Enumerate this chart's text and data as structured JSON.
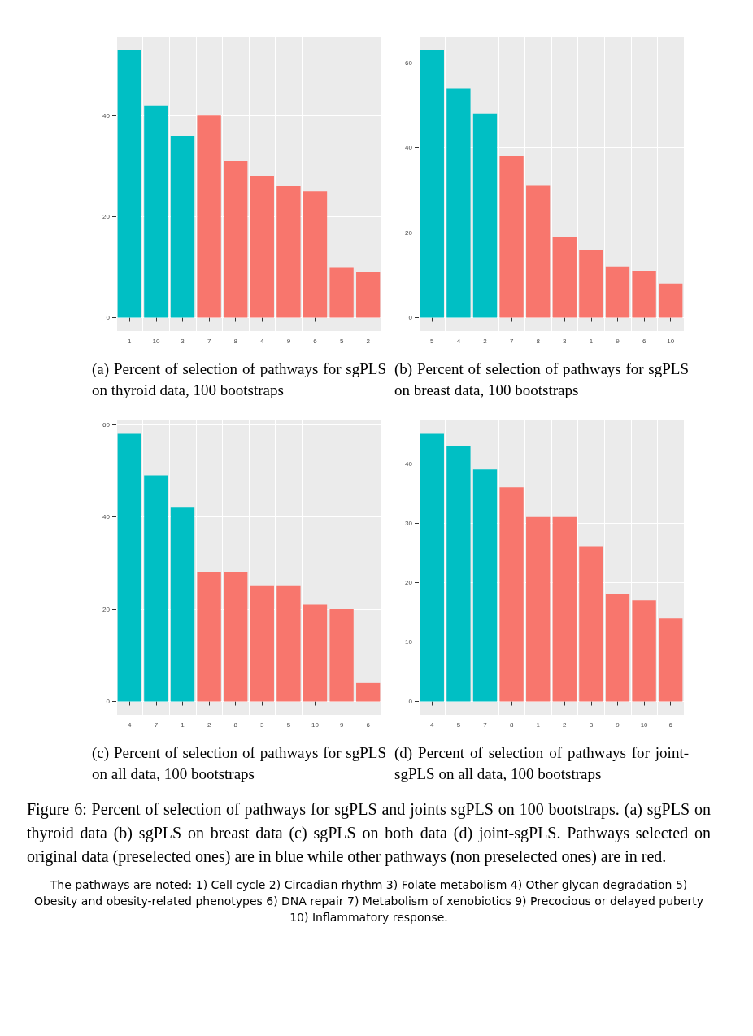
{
  "chart_data": [
    {
      "type": "bar",
      "categories": [
        "1",
        "10",
        "3",
        "7",
        "8",
        "4",
        "9",
        "6",
        "5",
        "2"
      ],
      "values": [
        53,
        42,
        36,
        40,
        31,
        28,
        26,
        25,
        10,
        9
      ],
      "colors": [
        "#00bfc4",
        "#00bfc4",
        "#00bfc4",
        "#f8766d",
        "#f8766d",
        "#f8766d",
        "#f8766d",
        "#f8766d",
        "#f8766d",
        "#f8766d"
      ],
      "ylim": [
        -2.65,
        55.65
      ],
      "yticks": [
        0,
        20,
        40
      ],
      "grid": true,
      "annotations": [
        "(a) Percent of selection of pathways for sgPLS on thyroid data, 100 bootstraps"
      ]
    },
    {
      "type": "bar",
      "categories": [
        "5",
        "4",
        "2",
        "7",
        "8",
        "3",
        "1",
        "9",
        "6",
        "10"
      ],
      "values": [
        63,
        54,
        48,
        38,
        31,
        19,
        16,
        12,
        11,
        8
      ],
      "colors": [
        "#00bfc4",
        "#00bfc4",
        "#00bfc4",
        "#f8766d",
        "#f8766d",
        "#f8766d",
        "#f8766d",
        "#f8766d",
        "#f8766d",
        "#f8766d"
      ],
      "ylim": [
        -3.15,
        66.15
      ],
      "yticks": [
        0,
        20,
        40,
        60
      ],
      "grid": true,
      "annotations": [
        "(b) Percent of selection of pathways for sgPLS on breast data, 100 bootstraps"
      ]
    },
    {
      "type": "bar",
      "categories": [
        "4",
        "7",
        "1",
        "2",
        "8",
        "3",
        "5",
        "10",
        "9",
        "6"
      ],
      "values": [
        58,
        49,
        42,
        28,
        28,
        25,
        25,
        21,
        20,
        4
      ],
      "colors": [
        "#00bfc4",
        "#00bfc4",
        "#00bfc4",
        "#f8766d",
        "#f8766d",
        "#f8766d",
        "#f8766d",
        "#f8766d",
        "#f8766d",
        "#f8766d"
      ],
      "ylim": [
        -2.9,
        60.9
      ],
      "yticks": [
        0,
        20,
        40,
        60
      ],
      "grid": true,
      "annotations": [
        "(c) Percent of selection of pathways for sgPLS on all data, 100 bootstraps"
      ]
    },
    {
      "type": "bar",
      "categories": [
        "4",
        "5",
        "7",
        "8",
        "1",
        "2",
        "3",
        "9",
        "10",
        "6"
      ],
      "values": [
        45,
        43,
        39,
        36,
        31,
        31,
        26,
        18,
        17,
        14
      ],
      "colors": [
        "#00bfc4",
        "#00bfc4",
        "#00bfc4",
        "#f8766d",
        "#f8766d",
        "#f8766d",
        "#f8766d",
        "#f8766d",
        "#f8766d",
        "#f8766d"
      ],
      "ylim": [
        -2.25,
        47.25
      ],
      "yticks": [
        0,
        10,
        20,
        30,
        40
      ],
      "grid": true,
      "annotations": [
        "(d) Percent of selection of pathways for joint-sgPLS on all data, 100 bootstraps",
        "Figure 6: Percent of selection of pathways for sgPLS and joints sgPLS on 100 bootstraps. (a) sgPLS on thyroid data (b) sgPLS on breast data (c) sgPLS on both data (d) joint-sgPLS. Pathways selected on original data (preselected ones) are in blue while other pathways (non preselected ones) are in red.",
        "The pathways are noted: 1) Cell cycle 2) Circadian rhythm 3) Folate metabolism 4) Other glycan degradation 5) Obesity and obesity-related phenotypes 6) DNA repair 7) Metabolism of xenobiotics 9) Precocious or delayed puberty 10) Inflammatory response."
      ]
    }
  ]
}
